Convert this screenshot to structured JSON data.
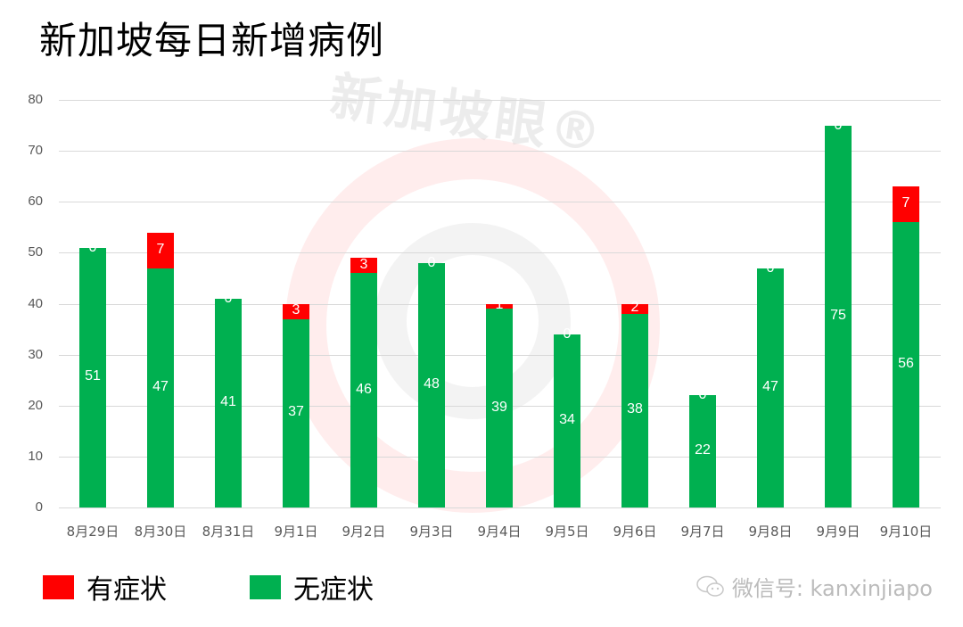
{
  "title": "新加坡每日新增病例",
  "watermark": "新加坡眼®",
  "colors": {
    "symptomatic": "#ff0000",
    "asymptomatic": "#00b050",
    "grid": "#d9d9d9",
    "axis_text": "#595959"
  },
  "legend": [
    {
      "label": "有症状",
      "color": "#ff0000"
    },
    {
      "label": "无症状",
      "color": "#00b050"
    }
  ],
  "footer": {
    "wechat_label": "微信号: kanxinjiapo"
  },
  "chart_data": {
    "type": "bar",
    "stacked": true,
    "title": "新加坡每日新增病例",
    "xlabel": "",
    "ylabel": "",
    "ylim": [
      0,
      80
    ],
    "yticks": [
      0,
      10,
      20,
      30,
      40,
      50,
      60,
      70,
      80
    ],
    "grid": true,
    "legend_position": "bottom-left",
    "categories": [
      "8月29日",
      "8月30日",
      "8月31日",
      "9月1日",
      "9月2日",
      "9月3日",
      "9月4日",
      "9月5日",
      "9月6日",
      "9月7日",
      "9月8日",
      "9月9日",
      "9月10日"
    ],
    "series": [
      {
        "name": "无症状",
        "color": "#00b050",
        "values": [
          51,
          47,
          41,
          37,
          46,
          48,
          39,
          34,
          38,
          22,
          47,
          75,
          56
        ]
      },
      {
        "name": "有症状",
        "color": "#ff0000",
        "values": [
          0,
          7,
          0,
          3,
          3,
          0,
          1,
          0,
          2,
          0,
          0,
          0,
          7
        ]
      }
    ]
  }
}
